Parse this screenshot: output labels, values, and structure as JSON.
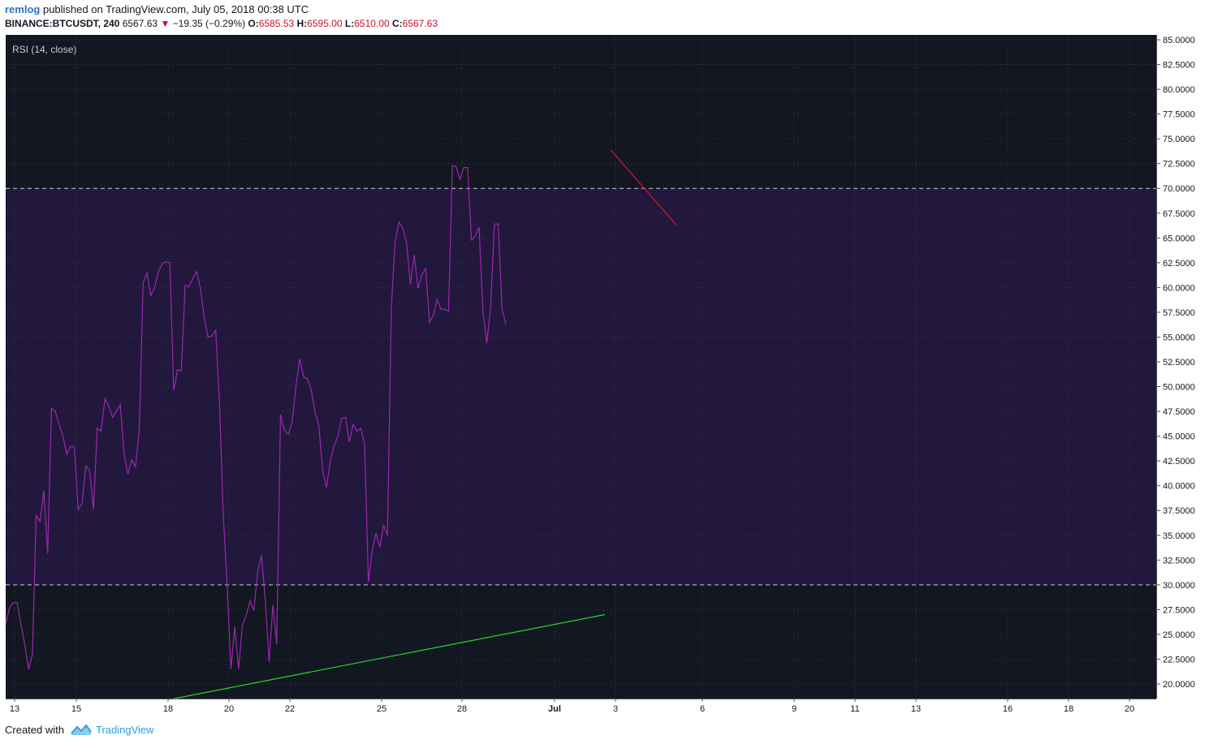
{
  "header": {
    "user": "remlog",
    "published_text": "published on TradingView.com, July 05, 2018 00:38 UTC",
    "symbol": "BINANCE:BTCUSDT, 240",
    "last": "6567.63",
    "change": "−19.35 (−0.29%)",
    "o_label": "O:",
    "o_value": "6585.53",
    "h_label": "H:",
    "h_value": "6595.00",
    "l_label": "L:",
    "l_value": "6510.00",
    "c_label": "C:",
    "c_value": "6567.63"
  },
  "indicator_label": "RSI (14, close)",
  "footer": {
    "created_with": "Created with",
    "brand": "TradingView"
  },
  "colors": {
    "background": "#131722",
    "band_fill": "#22183d",
    "rsi_line": "#9c27b0",
    "support_line": "#22dd22",
    "resistance_line": "#e0102a",
    "grid": "#2a2e39",
    "down": "#c8102e"
  },
  "chart_data": {
    "type": "line",
    "title": "RSI (14, close)",
    "ylim": [
      19,
      85.3
    ],
    "y_ticks": [
      "85.0000",
      "82.5000",
      "80.0000",
      "77.5000",
      "75.0000",
      "72.5000",
      "70.0000",
      "67.5000",
      "65.0000",
      "62.5000",
      "60.0000",
      "57.5000",
      "55.0000",
      "52.5000",
      "50.0000",
      "47.5000",
      "45.0000",
      "42.5000",
      "40.0000",
      "37.5000",
      "35.0000",
      "32.5000",
      "30.0000",
      "27.5000",
      "25.0000",
      "22.5000",
      "20.0000"
    ],
    "x_ticks": [
      "13",
      "15",
      "18",
      "20",
      "22",
      "25",
      "28",
      "Jul",
      "3",
      "6",
      "9",
      "11",
      "13",
      "16",
      "18",
      "20"
    ],
    "overbought": 70,
    "oversold": 30,
    "grid": true,
    "series": [
      {
        "values": [
          26.0,
          27.7,
          28.2,
          28.2,
          26.0,
          24.0,
          21.5,
          23.0,
          37.0,
          36.4,
          39.5,
          33.2,
          47.8,
          47.5,
          46.2,
          45.0,
          43.2,
          44.0,
          43.9,
          37.6,
          38.2,
          42.0,
          41.5,
          37.6,
          45.8,
          45.5,
          48.8,
          48.0,
          46.9,
          47.5,
          48.2,
          43.2,
          41.2,
          42.6,
          41.9,
          45.8,
          60.5,
          61.5,
          59.2,
          60.0,
          61.6,
          62.4,
          62.6,
          62.5,
          49.6,
          51.7,
          51.6,
          60.2,
          60.1,
          60.9,
          61.6,
          59.9,
          57.0,
          55.0,
          55.1,
          55.7,
          48.4,
          37.0,
          30.0,
          21.5,
          25.8,
          21.5,
          25.9,
          26.9,
          28.4,
          27.4,
          31.3,
          33.0,
          28.5,
          22.2,
          28.0,
          24.0,
          47.2,
          45.6,
          45.2,
          46.3,
          50.0,
          52.8,
          51.0,
          50.8,
          49.7,
          47.5,
          46.1,
          41.6,
          39.8,
          42.5,
          44.0,
          45.0,
          46.8,
          46.9,
          44.4,
          46.2,
          45.5,
          45.8,
          44.2,
          30.3,
          33.5,
          35.2,
          33.8,
          36.0,
          35.0,
          58.0,
          64.6,
          66.6,
          66.0,
          64.5,
          60.3,
          63.3,
          59.9,
          61.3,
          61.9,
          56.5,
          57.2,
          58.8,
          57.8,
          57.8,
          57.6,
          72.3,
          72.2,
          70.9,
          72.1,
          72.1,
          64.8,
          65.2,
          66.1,
          57.6,
          54.4,
          58.0,
          66.4,
          66.4,
          57.8,
          56.3
        ]
      }
    ],
    "trendlines": [
      {
        "name": "support",
        "from": [
          18,
          18.4
        ],
        "to": [
          2.9,
          27.0
        ]
      },
      {
        "name": "resistance",
        "from": [
          2.9,
          73.9
        ],
        "to": [
          4.9,
          66.3
        ]
      }
    ]
  }
}
